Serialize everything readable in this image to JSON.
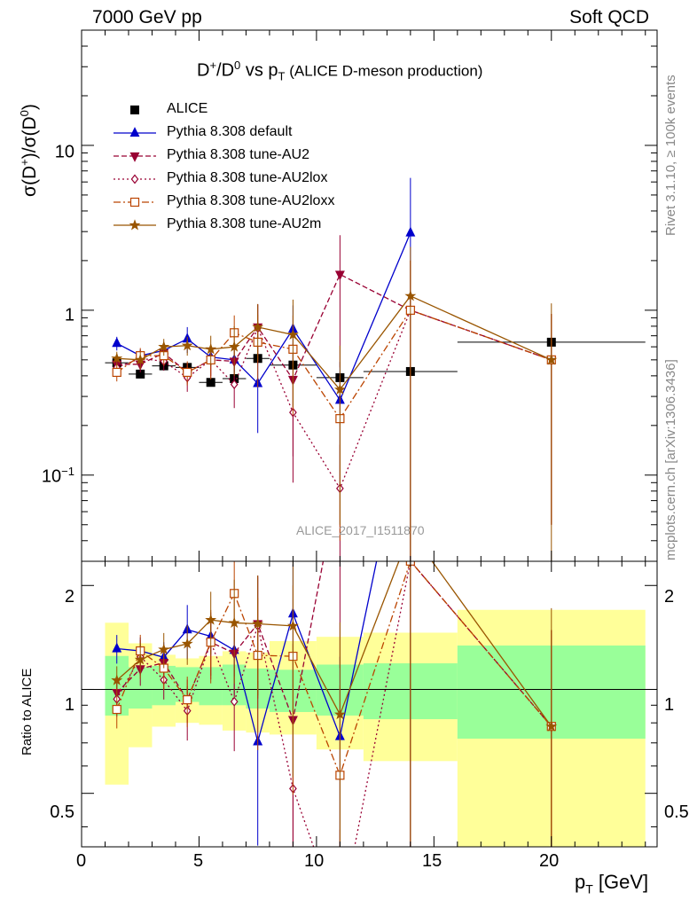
{
  "header": {
    "left": "7000 GeV pp",
    "right": "Soft QCD"
  },
  "side_labels": {
    "rivet": "Rivet 3.1.10, ≥ 100k events",
    "mcplots": "mcplots.cern.ch [arXiv:1306.3436]"
  },
  "main_title": {
    "base": "D",
    "sup1": "+",
    "mid": "/D",
    "sup2": "0",
    "vs": " vs p",
    "sub": "T",
    "paren": " (ALICE D-meson production)"
  },
  "main_ylabel": {
    "a": "σ(D",
    "a_sup": "+",
    "b": ")/σ(D",
    "b_sup": "0",
    "c": ")"
  },
  "ratio_ylabel": "Ratio to ALICE",
  "xlabel": {
    "base": "p",
    "sub": "T",
    "rest": " [GeV]"
  },
  "watermark": "ALICE_2017_I1511870",
  "main_yticks": [
    {
      "value": 0.1,
      "base": "10",
      "sup": "−1"
    },
    {
      "value": 1,
      "base": "1",
      "sup": ""
    },
    {
      "value": 10,
      "base": "10",
      "sup": ""
    }
  ],
  "ratio_yticks": [
    {
      "value": 0.5,
      "label": "0.5"
    },
    {
      "value": 1,
      "label": "1"
    },
    {
      "value": 2,
      "label": "2"
    }
  ],
  "xticks": [
    {
      "value": 0,
      "label": "0"
    },
    {
      "value": 5,
      "label": "5"
    },
    {
      "value": 10,
      "label": "10"
    },
    {
      "value": 15,
      "label": "15"
    },
    {
      "value": 20,
      "label": "20"
    }
  ],
  "chart_data": {
    "type": "scatter",
    "x_range": [
      0,
      24.5
    ],
    "main_ylim": [
      0.03,
      50
    ],
    "main_yscale": "log",
    "ratio_ylim": [
      0.35,
      2.35
    ],
    "ratio_yscale": "log",
    "legend_position": "top-left",
    "data": {
      "name": "ALICE",
      "color": "#000000",
      "x": [
        1.5,
        2.5,
        3.5,
        4.5,
        5.5,
        6.5,
        7.5,
        9,
        11,
        14,
        20
      ],
      "y": [
        0.48,
        0.41,
        0.46,
        0.45,
        0.365,
        0.385,
        0.51,
        0.465,
        0.39,
        0.425,
        0.64
      ],
      "x_edges": [
        1,
        2,
        3,
        4,
        5,
        6,
        7,
        8,
        10,
        12,
        16,
        24
      ],
      "band_stat": [
        [
          0.84,
          1.25
        ],
        [
          0.88,
          1.16
        ],
        [
          0.9,
          1.17
        ],
        [
          0.92,
          1.16
        ],
        [
          0.9,
          1.16
        ],
        [
          0.9,
          1.18
        ],
        [
          0.88,
          1.15
        ],
        [
          0.86,
          1.14
        ],
        [
          0.84,
          1.18
        ],
        [
          0.82,
          1.19
        ],
        [
          0.72,
          1.34
        ]
      ],
      "band_total": [
        [
          0.53,
          1.56
        ],
        [
          0.68,
          1.36
        ],
        [
          0.78,
          1.26
        ],
        [
          0.8,
          1.23
        ],
        [
          0.79,
          1.25
        ],
        [
          0.76,
          1.29
        ],
        [
          0.75,
          1.28
        ],
        [
          0.74,
          1.38
        ],
        [
          0.67,
          1.42
        ],
        [
          0.62,
          1.46
        ],
        [
          0.35,
          1.7
        ]
      ]
    },
    "series": [
      {
        "name": "Pythia 8.308 default",
        "color": "#0000cc",
        "dash": "",
        "marker": "triangle-up",
        "filled": true,
        "x": [
          1.5,
          2.5,
          3.5,
          4.5,
          5.5,
          6.5,
          7.5,
          9,
          11,
          14
        ],
        "y": [
          0.63,
          0.53,
          0.57,
          0.67,
          0.52,
          0.5,
          0.36,
          0.77,
          0.285,
          2.95
        ],
        "err": [
          0.06,
          0.05,
          0.06,
          0.12,
          0.06,
          0.08,
          0.18,
          0.3,
          0.2,
          3.4
        ]
      },
      {
        "name": "Pythia 8.308 tune-AU2",
        "color": "#990033",
        "dash": "6,3",
        "marker": "triangle-down",
        "filled": true,
        "x": [
          1.5,
          2.5,
          3.5,
          4.5,
          5.5,
          6.5,
          7.5,
          9,
          11,
          14,
          20
        ],
        "y": [
          0.47,
          0.47,
          0.55,
          0.42,
          0.5,
          0.49,
          0.79,
          0.38,
          1.65,
          1.0,
          0.5
        ],
        "err": [
          0.05,
          0.05,
          0.07,
          0.06,
          0.1,
          0.12,
          0.3,
          0.25,
          1.2,
          1.0,
          0.45
        ]
      },
      {
        "name": "Pythia 8.308 tune-AU2lox",
        "color": "#990033",
        "dash": "2,3",
        "marker": "diamond",
        "filled": false,
        "x": [
          1.5,
          2.5,
          3.5,
          4.5,
          5.5,
          6.5,
          7.5,
          9,
          11,
          14,
          20
        ],
        "y": [
          0.45,
          0.51,
          0.49,
          0.39,
          0.5,
          0.355,
          0.78,
          0.24,
          0.083,
          1.0,
          0.5
        ],
        "err": [
          0.05,
          0.06,
          0.06,
          0.07,
          0.11,
          0.1,
          0.3,
          0.15,
          0.07,
          1.0,
          0.45
        ]
      },
      {
        "name": "Pythia 8.308 tune-AU2loxx",
        "color": "#bb4400",
        "dash": "8,3,2,3",
        "marker": "square",
        "filled": false,
        "x": [
          1.5,
          2.5,
          3.5,
          4.5,
          5.5,
          6.5,
          7.5,
          9,
          11,
          14,
          20
        ],
        "y": [
          0.42,
          0.53,
          0.53,
          0.42,
          0.5,
          0.73,
          0.64,
          0.58,
          0.22,
          1.0,
          0.5
        ],
        "err": [
          0.05,
          0.06,
          0.07,
          0.07,
          0.12,
          0.2,
          0.3,
          0.35,
          0.18,
          1.0,
          0.45
        ]
      },
      {
        "name": "Pythia 8.308 tune-AU2m",
        "color": "#995500",
        "dash": "",
        "marker": "star",
        "filled": true,
        "x": [
          1.5,
          2.5,
          3.5,
          4.5,
          5.5,
          6.5,
          7.5,
          9,
          11,
          14,
          20
        ],
        "y": [
          0.51,
          0.5,
          0.6,
          0.61,
          0.58,
          0.6,
          0.79,
          0.71,
          0.33,
          1.22,
          0.5
        ],
        "err": [
          0.05,
          0.06,
          0.07,
          0.08,
          0.12,
          0.2,
          0.3,
          0.45,
          0.28,
          1.2,
          0.6
        ]
      }
    ]
  }
}
